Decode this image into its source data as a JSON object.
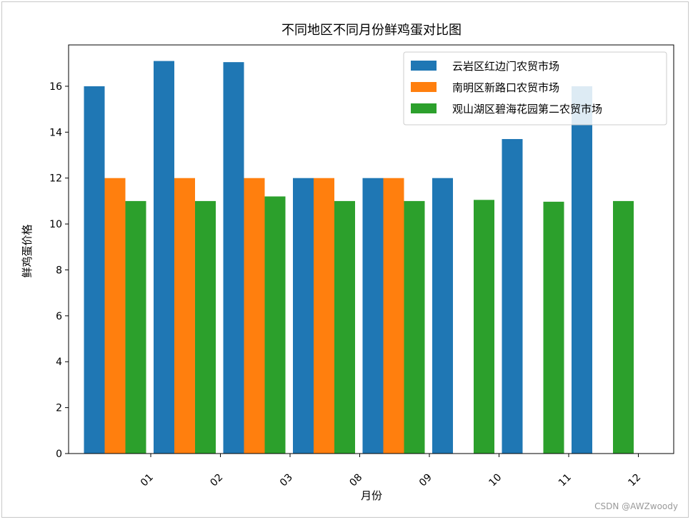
{
  "watermark": "CSDN @AWZwoody",
  "chart_data": {
    "type": "bar",
    "title": "不同地区不同月份鲜鸡蛋对比图",
    "xlabel": "月份",
    "ylabel": "鲜鸡蛋价格",
    "categories": [
      "01",
      "02",
      "03",
      "08",
      "09",
      "10",
      "11",
      "12"
    ],
    "ylim": [
      0,
      17.8
    ],
    "yticks": [
      0,
      2,
      4,
      6,
      8,
      10,
      12,
      14,
      16
    ],
    "legend_position": "top-right",
    "grid": false,
    "series": [
      {
        "name": "云岩区红边门农贸市场",
        "color": "#1f77b4",
        "values": [
          16.0,
          17.1,
          17.05,
          12.0,
          12.0,
          12.0,
          13.7,
          16.0
        ]
      },
      {
        "name": "南明区新路口农贸市场",
        "color": "#ff7f0e",
        "values": [
          12.0,
          12.0,
          12.0,
          12.0,
          12.0,
          null,
          null,
          null
        ]
      },
      {
        "name": "观山湖区碧海花园第二农贸市场",
        "color": "#2ca02c",
        "values": [
          11.0,
          11.0,
          11.2,
          11.0,
          11.0,
          11.05,
          10.97,
          11.0
        ]
      }
    ]
  }
}
